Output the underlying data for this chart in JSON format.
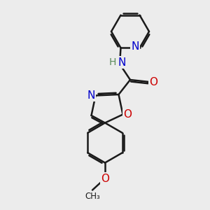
{
  "bg_color": "#ececec",
  "bond_color": "#1a1a1a",
  "bond_width": 1.8,
  "font_size": 10,
  "fig_width": 3.0,
  "fig_height": 3.0,
  "xlim": [
    0,
    10
  ],
  "ylim": [
    0,
    10
  ],
  "N_color": "#0000cc",
  "O_color": "#cc0000",
  "H_color": "#5a8a5a",
  "C_color": "#1a1a1a"
}
